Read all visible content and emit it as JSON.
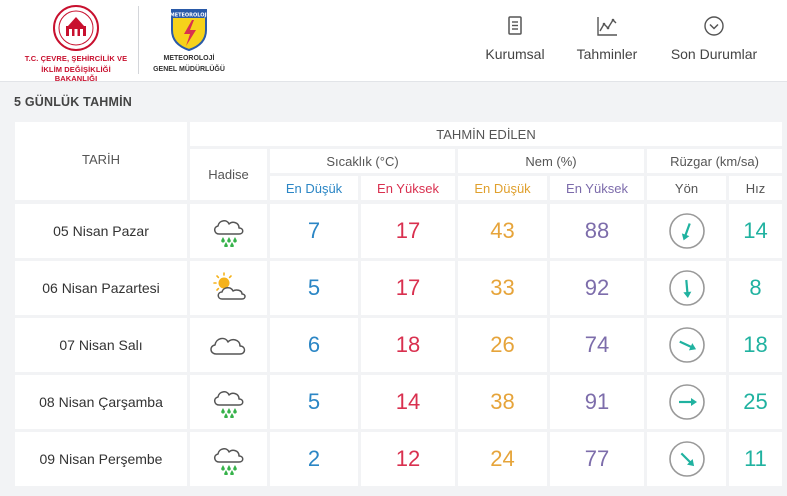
{
  "header": {
    "ministry_line1": "T.C. ÇEVRE, ŞEHİRCİLİK VE",
    "ministry_line2": "İKLİM DEĞİŞİKLİĞİ BAKANLIĞI",
    "mgm_line1": "METEOROLOJİ",
    "mgm_line2": "GENEL MÜDÜRLÜĞÜ",
    "mgm_badge": "METEOROLOJİ",
    "nav": [
      {
        "label": "Kurumsal",
        "icon": "document-icon"
      },
      {
        "label": "Tahminler",
        "icon": "chart-icon"
      },
      {
        "label": "Son Durumlar",
        "icon": "chevron-down-circle-icon"
      }
    ]
  },
  "section_title": "5 GÜNLÜK TAHMİN",
  "table": {
    "tahmin_edilen": "TAHMİN EDİLEN",
    "tarih": "TARİH",
    "hadise": "Hadise",
    "sicaklik": "Sıcaklık (°C)",
    "nem": "Nem (%)",
    "ruzgar": "Rüzgar (km/sa)",
    "en_dusuk": "En Düşük",
    "en_yuksek": "En Yüksek",
    "yon": "Yön",
    "hiz": "Hız",
    "rows": [
      {
        "date": "05 Nisan Pazar",
        "icon": "rain-cloud-icon",
        "t_min": "7",
        "t_max": "17",
        "h_min": "43",
        "h_max": "88",
        "wind_deg": 200,
        "wind_speed": "14"
      },
      {
        "date": "06 Nisan Pazartesi",
        "icon": "partly-sunny-icon",
        "t_min": "5",
        "t_max": "17",
        "h_min": "33",
        "h_max": "92",
        "wind_deg": 175,
        "wind_speed": "8"
      },
      {
        "date": "07 Nisan Salı",
        "icon": "cloud-icon",
        "t_min": "6",
        "t_max": "18",
        "h_min": "26",
        "h_max": "74",
        "wind_deg": 115,
        "wind_speed": "18"
      },
      {
        "date": "08 Nisan Çarşamba",
        "icon": "rain-cloud-icon",
        "t_min": "5",
        "t_max": "14",
        "h_min": "38",
        "h_max": "91",
        "wind_deg": 90,
        "wind_speed": "25"
      },
      {
        "date": "09 Nisan Perşembe",
        "icon": "rain-cloud-icon",
        "t_min": "2",
        "t_max": "12",
        "h_min": "24",
        "h_max": "77",
        "wind_deg": 135,
        "wind_speed": "11"
      }
    ]
  },
  "colors": {
    "min": "#2b86c5",
    "max": "#d9304f",
    "hum_min": "#e6a43a",
    "hum_max": "#7d6dab",
    "wind": "#20b2a0"
  }
}
